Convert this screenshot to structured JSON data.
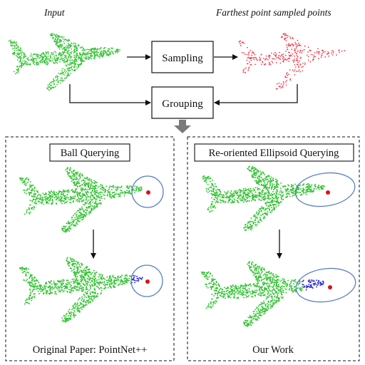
{
  "labels": {
    "input": "Input",
    "fps": "Farthest point sampled points",
    "sampling": "Sampling",
    "grouping": "Grouping",
    "ball_querying": "Ball Querying",
    "ellipsoid_querying": "Re-oriented Ellipsoid Querying",
    "original_paper": "Original Paper: PointNet++",
    "our_work": "Our Work"
  },
  "colors": {
    "input_points": "#33c233",
    "sampled_points": "#f04050",
    "query_center": "#e01010",
    "grouped_points": "#2a2ad8",
    "query_region": "#5b7fc4",
    "flow_arrow": "#7a7a7a"
  },
  "icons": {
    "airplane": "airplane-point-cloud-icon",
    "merge_arrow": "down-arrow-icon"
  }
}
